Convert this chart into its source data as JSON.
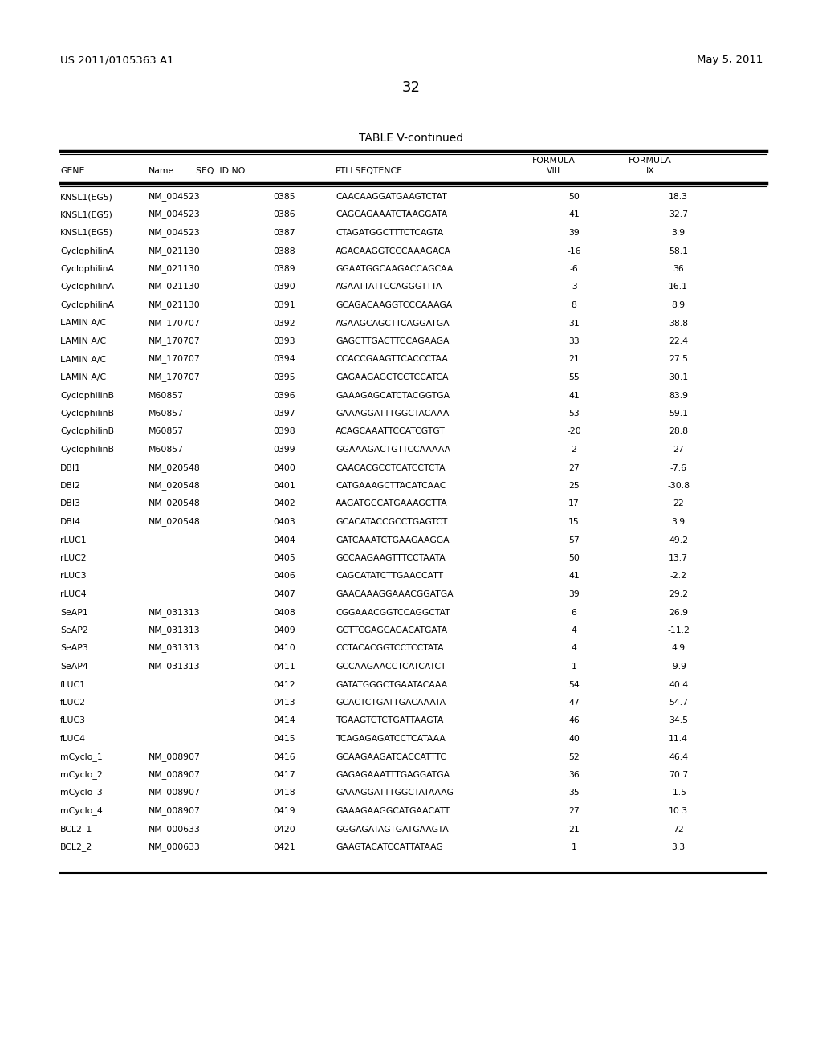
{
  "header_left": "US 2011/0105363 A1",
  "header_right": "May 5, 2011",
  "page_number": "32",
  "table_title": "TABLE V-continued",
  "rows": [
    [
      "KNSL1(EG5)",
      "NM_004523",
      "0385",
      "CAACAAGGATGAAGTCTAT",
      "50",
      "18.3"
    ],
    [
      "KNSL1(EG5)",
      "NM_004523",
      "0386",
      "CAGCAGAAATCTAAGGATA",
      "41",
      "32.7"
    ],
    [
      "KNSL1(EG5)",
      "NM_004523",
      "0387",
      "CTAGATGGCTTTCTCAGTA",
      "39",
      "3.9"
    ],
    [
      "CyclophilinA",
      "NM_021130",
      "0388",
      "AGACAAGGTCCCAAAGACA",
      "-16",
      "58.1"
    ],
    [
      "CyclophilinA",
      "NM_021130",
      "0389",
      "GGAATGGCAAGACCAGCAA",
      "-6",
      "36"
    ],
    [
      "CyclophilinA",
      "NM_021130",
      "0390",
      "AGAATTATTCCAGGGTTTA",
      "-3",
      "16.1"
    ],
    [
      "CyclophilinA",
      "NM_021130",
      "0391",
      "GCAGACAAGGTCCCAAAGA",
      "8",
      "8.9"
    ],
    [
      "LAMIN A/C",
      "NM_170707",
      "0392",
      "AGAAGCAGCTTCAGGATGA",
      "31",
      "38.8"
    ],
    [
      "LAMIN A/C",
      "NM_170707",
      "0393",
      "GAGCTTGACTTCCAGAAGA",
      "33",
      "22.4"
    ],
    [
      "LAMIN A/C",
      "NM_170707",
      "0394",
      "CCACCGAAGTTCACCCTAA",
      "21",
      "27.5"
    ],
    [
      "LAMIN A/C",
      "NM_170707",
      "0395",
      "GAGAAGAGCTCCTCCATCA",
      "55",
      "30.1"
    ],
    [
      "CyclophilinB",
      "M60857",
      "0396",
      "GAAAGAGCATCTACGGTGA",
      "41",
      "83.9"
    ],
    [
      "CyclophilinB",
      "M60857",
      "0397",
      "GAAAGGATTTGGCTACAAA",
      "53",
      "59.1"
    ],
    [
      "CyclophilinB",
      "M60857",
      "0398",
      "ACAGCAAATTCCATCGTGT",
      "-20",
      "28.8"
    ],
    [
      "CyclophilinB",
      "M60857",
      "0399",
      "GGAAAGACTGTTCCAAAAA",
      "2",
      "27"
    ],
    [
      "DBI1",
      "NM_020548",
      "0400",
      "CAACACGCCTCATCCTCTA",
      "27",
      "-7.6"
    ],
    [
      "DBI2",
      "NM_020548",
      "0401",
      "CATGAAAGCTTACATCAAC",
      "25",
      "-30.8"
    ],
    [
      "DBI3",
      "NM_020548",
      "0402",
      "AAGATGCCATGAAAGCTTA",
      "17",
      "22"
    ],
    [
      "DBI4",
      "NM_020548",
      "0403",
      "GCACATACCGCCTGAGTCT",
      "15",
      "3.9"
    ],
    [
      "rLUC1",
      "",
      "0404",
      "GATCAAATCTGAAGAAGGA",
      "57",
      "49.2"
    ],
    [
      "rLUC2",
      "",
      "0405",
      "GCCAAGAAGTTTCCTAATA",
      "50",
      "13.7"
    ],
    [
      "rLUC3",
      "",
      "0406",
      "CAGCATATCTTGAACCATT",
      "41",
      "-2.2"
    ],
    [
      "rLUC4",
      "",
      "0407",
      "GAACAAAGGAAACGGATGA",
      "39",
      "29.2"
    ],
    [
      "SeAP1",
      "NM_031313",
      "0408",
      "CGGAAACGGTCCAGGCTAT",
      "6",
      "26.9"
    ],
    [
      "SeAP2",
      "NM_031313",
      "0409",
      "GCTTCGAGCAGACATGATA",
      "4",
      "-11.2"
    ],
    [
      "SeAP3",
      "NM_031313",
      "0410",
      "CCTACACGGTCCTCCTATA",
      "4",
      "4.9"
    ],
    [
      "SeAP4",
      "NM_031313",
      "0411",
      "GCCAAGAACCTCATCATCT",
      "1",
      "-9.9"
    ],
    [
      "fLUC1",
      "",
      "0412",
      "GATATGGGCTGAATACAAA",
      "54",
      "40.4"
    ],
    [
      "fLUC2",
      "",
      "0413",
      "GCACTCTGATTGACAAATA",
      "47",
      "54.7"
    ],
    [
      "fLUC3",
      "",
      "0414",
      "TGAAGTCTCTGATTAAGTA",
      "46",
      "34.5"
    ],
    [
      "fLUC4",
      "",
      "0415",
      "TCAGAGAGATCCTCATAAA",
      "40",
      "11.4"
    ],
    [
      "mCyclo_1",
      "NM_008907",
      "0416",
      "GCAAGAAGATCACCATTTC",
      "52",
      "46.4"
    ],
    [
      "mCyclo_2",
      "NM_008907",
      "0417",
      "GAGAGAAATTTGAGGATGA",
      "36",
      "70.7"
    ],
    [
      "mCyclo_3",
      "NM_008907",
      "0418",
      "GAAAGGATTTGGCTATAAAG",
      "35",
      "-1.5"
    ],
    [
      "mCyclo_4",
      "NM_008907",
      "0419",
      "GAAAGAAGGCATGAACATT",
      "27",
      "10.3"
    ],
    [
      "BCL2_1",
      "NM_000633",
      "0420",
      "GGGAGATAGTGATGAAGTA",
      "21",
      "72"
    ],
    [
      "BCL2_2",
      "NM_000633",
      "0421",
      "GAAGTACATCCATTATAAG",
      "1",
      "3.3"
    ]
  ],
  "bg_color": "#ffffff",
  "text_color": "#000000"
}
